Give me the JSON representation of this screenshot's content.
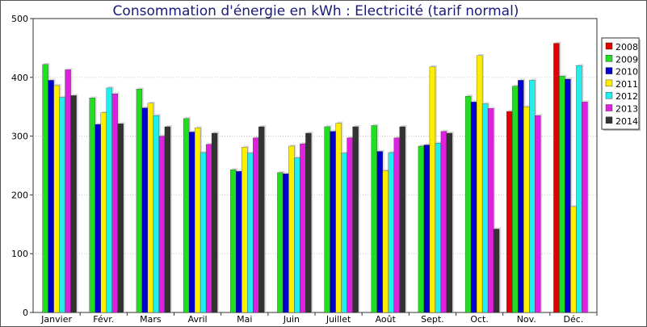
{
  "chart_data": {
    "type": "bar",
    "title": "Consommation d'énergie en kWh : Electricité (tarif normal)",
    "xlabel": "",
    "ylabel": "",
    "ylim": [
      0,
      500
    ],
    "yticks": [
      0,
      100,
      200,
      300,
      400,
      500
    ],
    "grid": true,
    "legend_position": "right",
    "categories": [
      "Janvier",
      "Févr.",
      "Mars",
      "Avril",
      "Mai",
      "Juin",
      "Juillet",
      "Août",
      "Sept.",
      "Oct.",
      "Nov.",
      "Déc."
    ],
    "series": [
      {
        "name": "2008",
        "color": "#e00000",
        "values": [
          null,
          null,
          null,
          null,
          null,
          null,
          null,
          null,
          null,
          null,
          342,
          458
        ]
      },
      {
        "name": "2009",
        "color": "#22dd22",
        "values": [
          422,
          365,
          380,
          330,
          243,
          238,
          316,
          318,
          283,
          368,
          385,
          402
        ]
      },
      {
        "name": "2010",
        "color": "#0000cc",
        "values": [
          395,
          320,
          348,
          307,
          240,
          236,
          308,
          274,
          285,
          358,
          395,
          397
        ]
      },
      {
        "name": "2011",
        "color": "#ffee00",
        "values": [
          386,
          340,
          356,
          314,
          281,
          283,
          322,
          241,
          418,
          437,
          350,
          180
        ]
      },
      {
        "name": "2012",
        "color": "#22eeee",
        "values": [
          366,
          382,
          335,
          272,
          271,
          263,
          271,
          272,
          288,
          355,
          395,
          420
        ]
      },
      {
        "name": "2013",
        "color": "#dd22dd",
        "values": [
          413,
          372,
          300,
          286,
          297,
          287,
          297,
          297,
          308,
          347,
          335,
          358
        ]
      },
      {
        "name": "2014",
        "color": "#333333",
        "values": [
          369,
          321,
          316,
          305,
          316,
          305,
          316,
          316,
          305,
          142,
          null,
          null
        ]
      }
    ]
  }
}
